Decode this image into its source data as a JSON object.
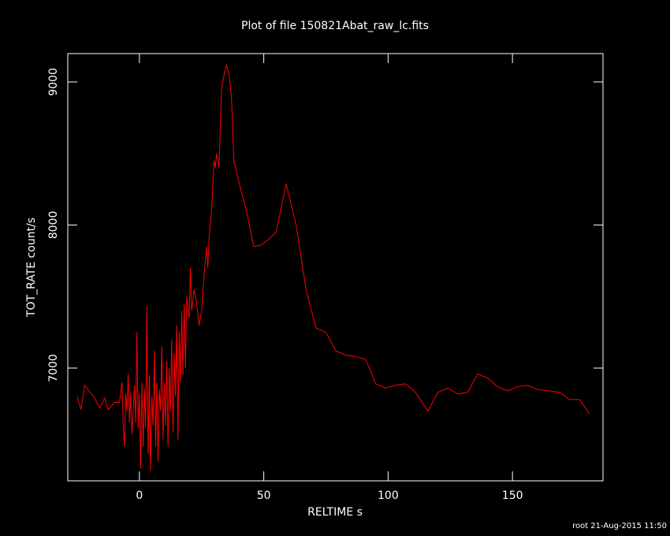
{
  "chart_data": {
    "type": "line",
    "title": "Plot of file 150821Abat_raw_lc.fits",
    "x_label": "RELTIME  s",
    "y_label": "TOT_RATE  count/s",
    "footer": "root 21-Aug-2015 11:50",
    "color": "#ff0000",
    "xlim": [
      -28.8,
      186.4
    ],
    "ylim": [
      6212,
      9198
    ],
    "xticks": [
      0,
      50,
      100,
      150
    ],
    "yticks": [
      7000,
      8000,
      9000
    ],
    "x": [
      -25,
      -23.5,
      -22,
      -18,
      -16,
      -14,
      -12.5,
      -10,
      -8,
      -7,
      -6.5,
      -6,
      -5.5,
      -5,
      -4.5,
      -4,
      -3.5,
      -3,
      -2.5,
      -2,
      -1.5,
      -1,
      -0.5,
      0,
      0.5,
      1,
      1.5,
      2,
      2.5,
      3,
      3.5,
      4,
      4.5,
      5,
      5.5,
      6,
      6.5,
      7,
      7.5,
      8,
      8.5,
      9,
      9.5,
      10,
      10.5,
      11,
      11.5,
      12,
      12.5,
      13,
      13.5,
      14,
      14.5,
      15,
      15.5,
      16,
      16.5,
      17,
      17.5,
      18,
      18.5,
      19,
      20,
      20.5,
      21,
      22,
      23,
      24,
      25,
      26,
      27,
      27.5,
      28,
      29,
      30,
      30.5,
      31,
      32,
      33,
      34,
      35,
      36,
      37,
      38,
      40,
      43,
      46,
      49,
      52,
      55,
      59,
      63,
      67,
      71,
      75,
      79,
      83,
      87,
      91,
      95,
      99,
      103,
      107,
      111,
      116,
      120,
      124,
      128,
      132,
      136,
      140,
      144,
      148,
      152,
      156,
      160,
      165,
      169,
      173,
      177,
      181
    ],
    "values": [
      6800,
      6710,
      6880,
      6790,
      6720,
      6790,
      6710,
      6760,
      6760,
      6900,
      6600,
      6450,
      6820,
      6700,
      6960,
      6620,
      6830,
      6540,
      6700,
      6880,
      6620,
      7250,
      6580,
      6820,
      6300,
      6900,
      6450,
      6860,
      6580,
      7430,
      6400,
      6950,
      6280,
      6800,
      6600,
      7120,
      6450,
      6900,
      6350,
      6850,
      6700,
      7150,
      6500,
      6900,
      6600,
      7050,
      6450,
      7000,
      6700,
      7200,
      6550,
      7100,
      6800,
      7300,
      6500,
      7250,
      6900,
      7400,
      6950,
      7450,
      7000,
      7500,
      7350,
      7700,
      7400,
      7550,
      7450,
      7300,
      7400,
      7650,
      7850,
      7700,
      7900,
      8100,
      8450,
      8400,
      8500,
      8400,
      8950,
      9050,
      9120,
      9050,
      8900,
      8450,
      8300,
      8100,
      7850,
      7860,
      7900,
      7950,
      8290,
      8000,
      7550,
      7280,
      7250,
      7120,
      7090,
      7080,
      7060,
      6890,
      6860,
      6880,
      6890,
      6830,
      6700,
      6830,
      6860,
      6820,
      6830,
      6960,
      6930,
      6870,
      6840,
      6870,
      6880,
      6850,
      6840,
      6830,
      6780,
      6780,
      6680
    ]
  }
}
